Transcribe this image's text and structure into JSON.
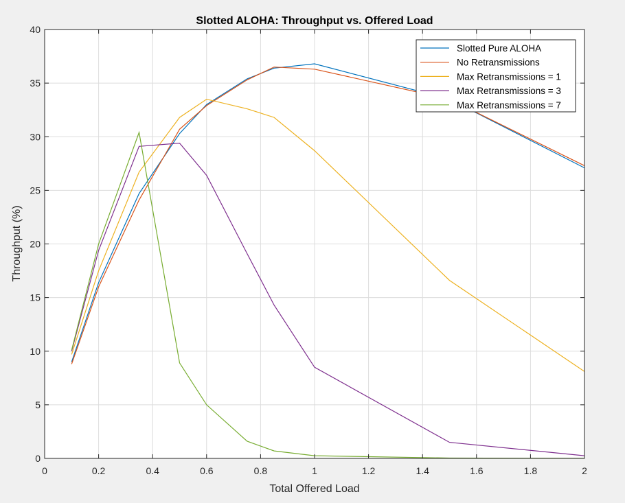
{
  "chart_data": {
    "type": "line",
    "title": "Slotted ALOHA: Throughput vs. Offered Load",
    "xlabel": "Total Offered Load",
    "ylabel": "Throughput (%)",
    "xlim": [
      0,
      2
    ],
    "ylim": [
      0,
      40
    ],
    "xticks": [
      0,
      0.2,
      0.4,
      0.6,
      0.8,
      1,
      1.2,
      1.4,
      1.6,
      1.8,
      2
    ],
    "xtick_labels": [
      "0",
      "0.2",
      "0.4",
      "0.6",
      "0.8",
      "1",
      "1.2",
      "1.4",
      "1.6",
      "1.8",
      "2"
    ],
    "yticks": [
      0,
      5,
      10,
      15,
      20,
      25,
      30,
      35,
      40
    ],
    "ytick_labels": [
      "0",
      "5",
      "10",
      "15",
      "20",
      "25",
      "30",
      "35",
      "40"
    ],
    "grid": true,
    "legend_position": "top-right",
    "x": [
      0.1,
      0.2,
      0.35,
      0.5,
      0.6,
      0.75,
      0.85,
      1,
      1.5,
      2
    ],
    "series": [
      {
        "name": "Slotted Pure ALOHA",
        "color": "#0072bd",
        "values": [
          9.0,
          16.4,
          24.7,
          30.3,
          33.0,
          35.4,
          36.4,
          36.8,
          33.5,
          27.1
        ]
      },
      {
        "name": "No Retransmissions",
        "color": "#d95319",
        "values": [
          8.8,
          16.0,
          24.1,
          30.7,
          32.9,
          35.3,
          36.5,
          36.3,
          33.5,
          27.3
        ]
      },
      {
        "name": "Max Retransmissions = 1",
        "color": "#edb120",
        "values": [
          9.7,
          17.5,
          26.7,
          31.8,
          33.5,
          32.6,
          31.8,
          28.7,
          16.6,
          8.1
        ]
      },
      {
        "name": "Max Retransmissions = 3",
        "color": "#7e2f8e",
        "values": [
          10.0,
          19.4,
          29.1,
          29.4,
          26.4,
          19.1,
          14.3,
          8.5,
          1.5,
          0.25
        ]
      },
      {
        "name": "Max Retransmissions = 7",
        "color": "#77ac30",
        "values": [
          10.1,
          20.0,
          30.4,
          8.9,
          5.0,
          1.6,
          0.7,
          0.25,
          0.03,
          0.01
        ]
      }
    ]
  }
}
